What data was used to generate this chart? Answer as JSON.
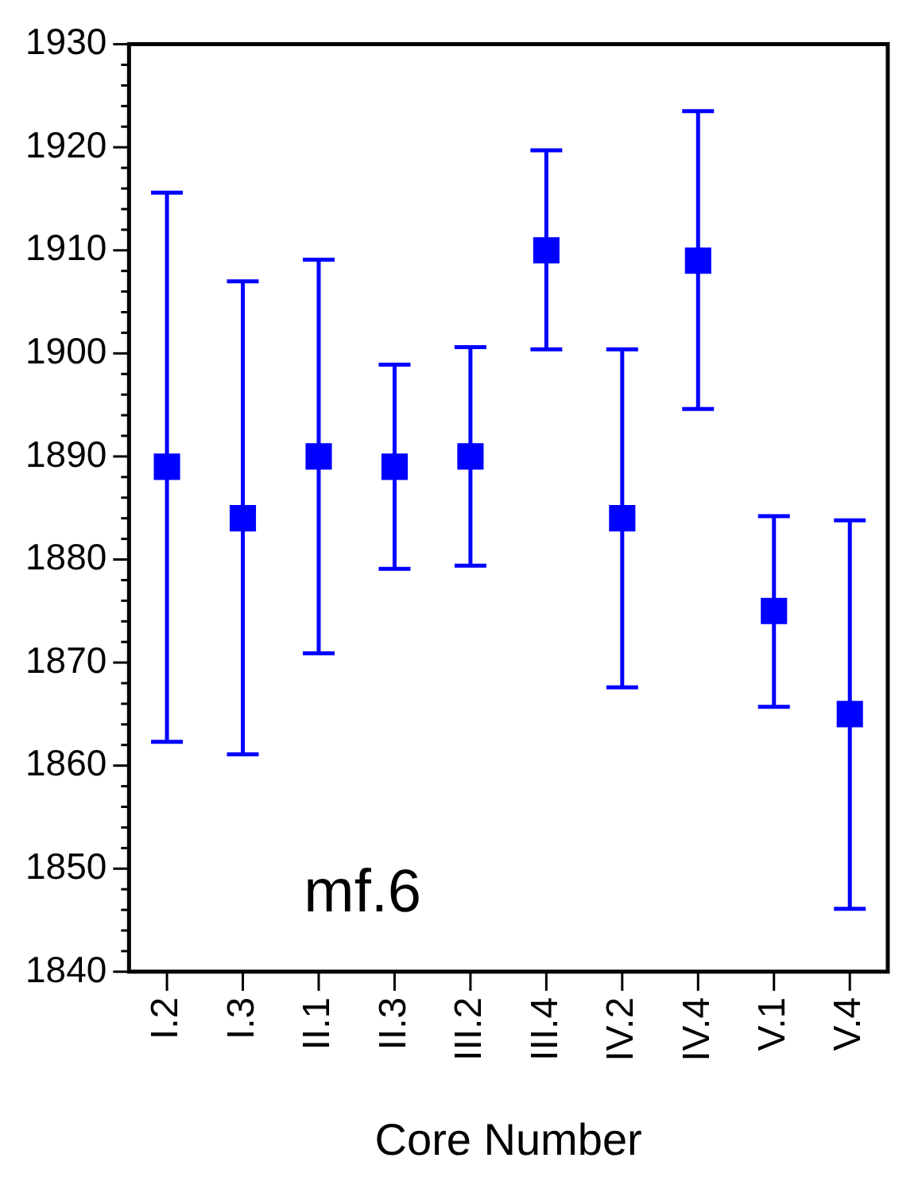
{
  "chart_data": {
    "type": "scatter",
    "xlabel": "Core Number",
    "annotations": [
      "mf.6"
    ],
    "categories": [
      "I.2",
      "I.3",
      "II.1",
      "II.3",
      "III.2",
      "III.4",
      "IV.2",
      "IV.4",
      "V.1",
      "V.4"
    ],
    "series": [
      {
        "color": "#0000ff",
        "values": [
          1889,
          1884,
          1890,
          1889,
          1890,
          1910,
          1884,
          1909,
          1875,
          1865
        ],
        "errors": [
          [
            1862.3,
            1915.6
          ],
          [
            1861.1,
            1907
          ],
          [
            1870.9,
            1909.1
          ],
          [
            1879.1,
            1898.9
          ],
          [
            1879.4,
            1900.6
          ],
          [
            1900.4,
            1919.7
          ],
          [
            1867.6,
            1900.4
          ],
          [
            1894.6,
            1923.5
          ],
          [
            1865.7,
            1884.2
          ],
          [
            1846.1,
            1883.8
          ]
        ]
      }
    ],
    "marker": "square",
    "grid": false,
    "legend": false,
    "ylim": [
      1840,
      1930
    ],
    "yticks": [
      1840,
      {
        "value": 1842,
        "label": null
      },
      {
        "value": 1844,
        "label": null
      },
      {
        "value": 1846,
        "label": null
      },
      {
        "value": 1848,
        "label": null
      },
      1850,
      {
        "value": 1852,
        "label": null
      },
      {
        "value": 1854,
        "label": null
      },
      {
        "value": 1856,
        "label": null
      },
      {
        "value": 1858,
        "label": null
      },
      1860,
      {
        "value": 1862,
        "label": null
      },
      {
        "value": 1864,
        "label": null
      },
      {
        "value": 1866,
        "label": null
      },
      {
        "value": 1868,
        "label": null
      },
      1870,
      {
        "value": 1872,
        "label": null
      },
      {
        "value": 1874,
        "label": null
      },
      {
        "value": 1876,
        "label": null
      },
      {
        "value": 1878,
        "label": null
      },
      1880,
      {
        "value": 1882,
        "label": null
      },
      {
        "value": 1884,
        "label": null
      },
      {
        "value": 1886,
        "label": null
      },
      {
        "value": 1888,
        "label": null
      },
      1890,
      {
        "value": 1892,
        "label": null
      },
      {
        "value": 1894,
        "label": null
      },
      {
        "value": 1896,
        "label": null
      },
      {
        "value": 1898,
        "label": null
      },
      1900,
      {
        "value": 1902,
        "label": null
      },
      {
        "value": 1904,
        "label": null
      },
      {
        "value": 1906,
        "label": null
      },
      {
        "value": 1908,
        "label": null
      },
      1910,
      {
        "value": 1912,
        "label": null
      },
      {
        "value": 1914,
        "label": null
      },
      {
        "value": 1916,
        "label": null
      },
      {
        "value": 1918,
        "label": null
      },
      1920,
      {
        "value": 1922,
        "label": null
      },
      {
        "value": 1924,
        "label": null
      },
      {
        "value": 1926,
        "label": null
      },
      {
        "value": 1928,
        "label": null
      },
      1930
    ]
  }
}
